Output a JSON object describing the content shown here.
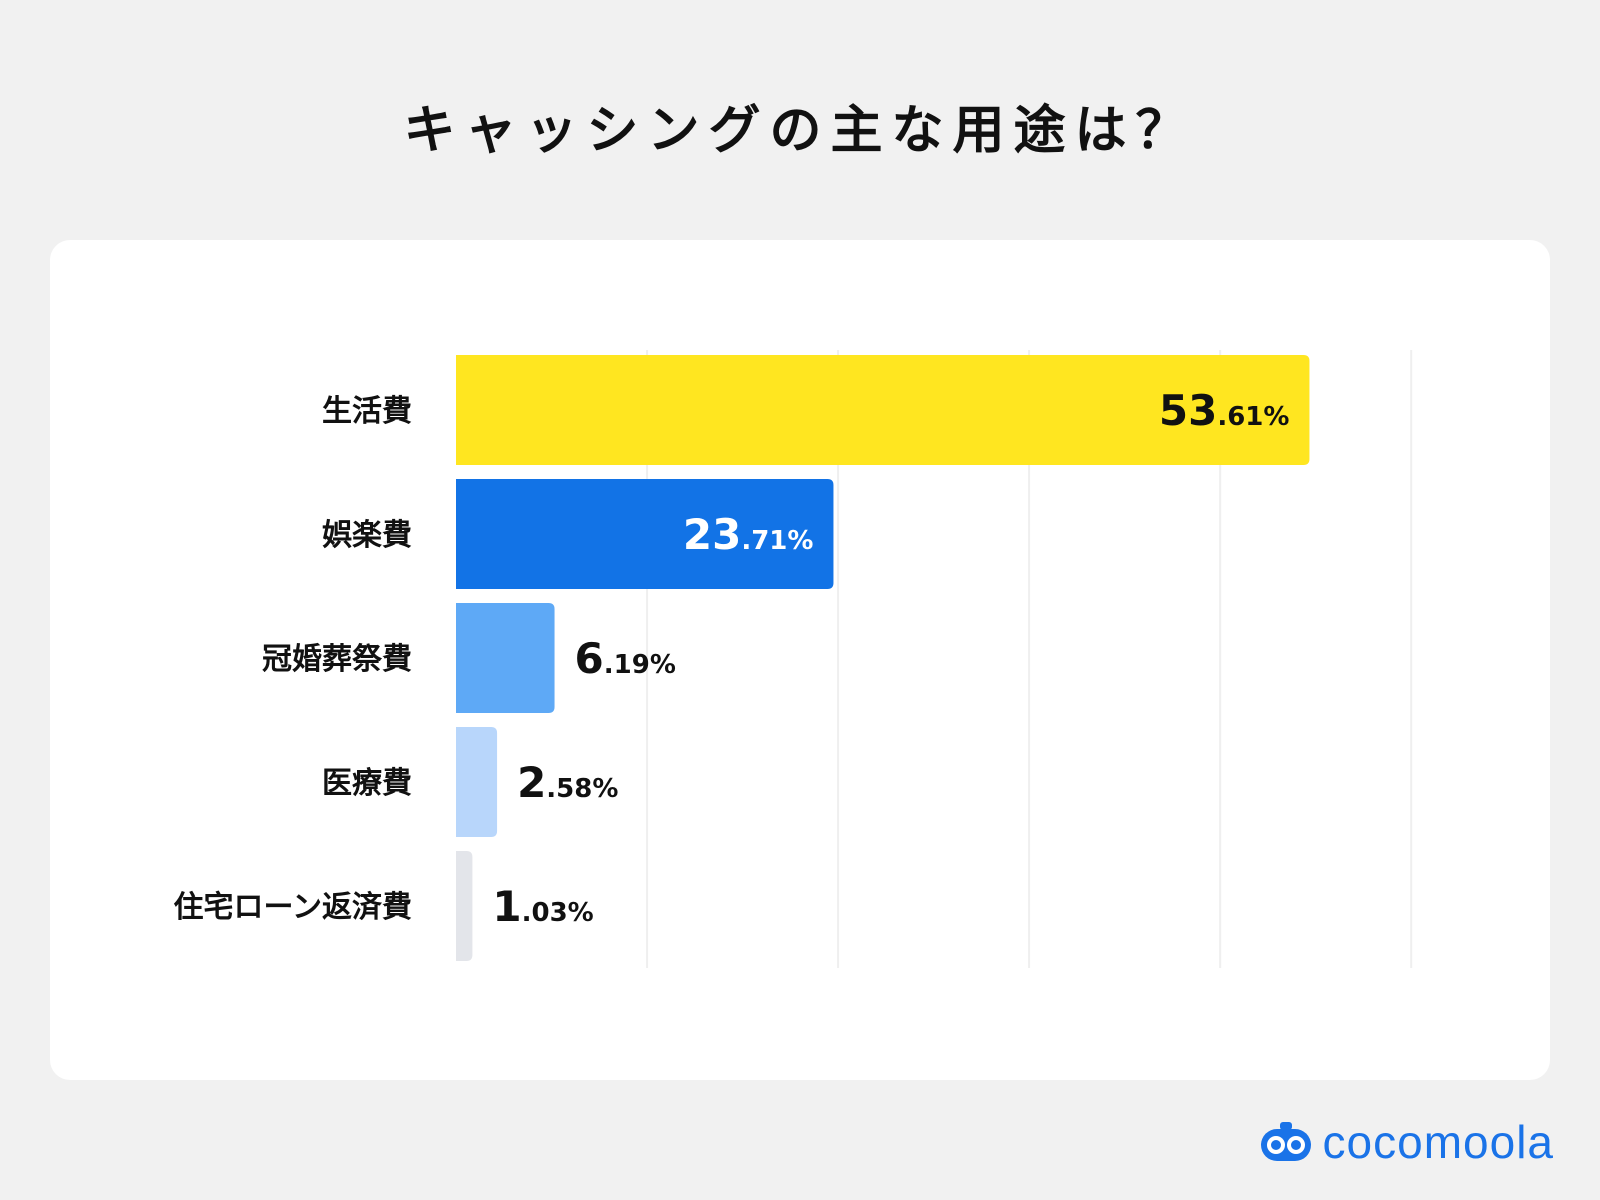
{
  "chart_data": {
    "type": "bar",
    "orientation": "horizontal",
    "title": "キャッシングの主な用途は？",
    "categories": [
      "生活費",
      "娯楽費",
      "冠婚葬祭費",
      "医療費",
      "住宅ローン返済費"
    ],
    "values": [
      53.61,
      23.71,
      6.19,
      2.58,
      1.03
    ],
    "value_labels": [
      {
        "int": "53",
        "dec": ".61%"
      },
      {
        "int": "23",
        "dec": ".71%"
      },
      {
        "int": "6",
        "dec": ".19%"
      },
      {
        "int": "2",
        "dec": ".58%"
      },
      {
        "int": "1",
        "dec": ".03%"
      }
    ],
    "colors": [
      "#ffe620",
      "#1273e6",
      "#5ea9f6",
      "#b8d6fb",
      "#e3e5ea"
    ],
    "label_colors": [
      "#111111",
      "#ffffff",
      "#111111",
      "#111111",
      "#111111"
    ],
    "label_inside": [
      true,
      true,
      false,
      false,
      false
    ],
    "xlim": [
      0,
      60
    ],
    "grid": true,
    "legend": "none"
  },
  "brand": {
    "name": "cocomoola",
    "color": "#1a73e8"
  }
}
